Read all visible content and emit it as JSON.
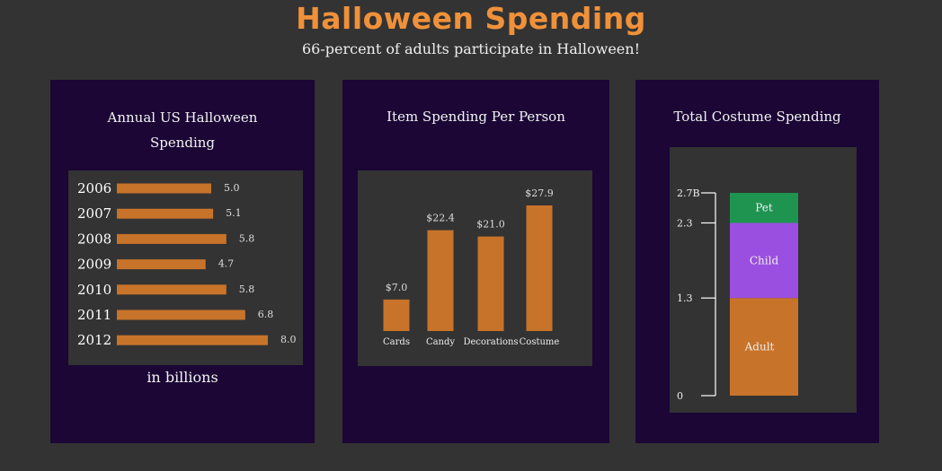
{
  "header": {
    "title": "Halloween Spending",
    "subtitle": "66-percent of adults participate in Halloween!"
  },
  "colors": {
    "background": "#333333",
    "panel": "#1b0635",
    "title": "#f0913a",
    "bar": "#c8732a",
    "pet": "#1f9450",
    "child": "#9b4fe0",
    "adult": "#c8732a"
  },
  "panels": {
    "annual": {
      "title": "Annual US Halloween Spending",
      "footnote": "in billions"
    },
    "item": {
      "title": "Item Spending Per Person"
    },
    "costume": {
      "title": "Total Costume Spending"
    }
  },
  "chart_data": [
    {
      "type": "bar",
      "orientation": "horizontal",
      "title": "Annual US Halloween Spending",
      "xlabel": "in billions",
      "categories": [
        "2006",
        "2007",
        "2008",
        "2009",
        "2010",
        "2011",
        "2012"
      ],
      "values": [
        5.0,
        5.1,
        5.8,
        4.7,
        5.8,
        6.8,
        8.0
      ],
      "labels": [
        "5.0",
        "5.1",
        "5.8",
        "4.7",
        "5.8",
        "6.8",
        "8.0"
      ],
      "xlim": [
        0,
        8
      ]
    },
    {
      "type": "bar",
      "title": "Item Spending Per Person",
      "categories": [
        "Cards",
        "Candy",
        "Decorations",
        "Costume"
      ],
      "values": [
        7.0,
        22.4,
        21.0,
        27.9
      ],
      "labels": [
        "$7.0",
        "$22.4",
        "$21.0",
        "$27.9"
      ],
      "ylim": [
        0,
        27.9
      ]
    },
    {
      "type": "bar",
      "stacked": true,
      "title": "Total Costume Spending",
      "segments": [
        {
          "name": "Adult",
          "value": 1.3
        },
        {
          "name": "Child",
          "value": 1.0
        },
        {
          "name": "Pet",
          "value": 0.4
        }
      ],
      "ticks": [
        {
          "value": 0,
          "label": "0"
        },
        {
          "value": 1.3,
          "label": "1.3"
        },
        {
          "value": 2.3,
          "label": "2.3"
        },
        {
          "value": 2.7,
          "label": "2.7B"
        }
      ],
      "ylim": [
        0,
        2.7
      ]
    }
  ]
}
